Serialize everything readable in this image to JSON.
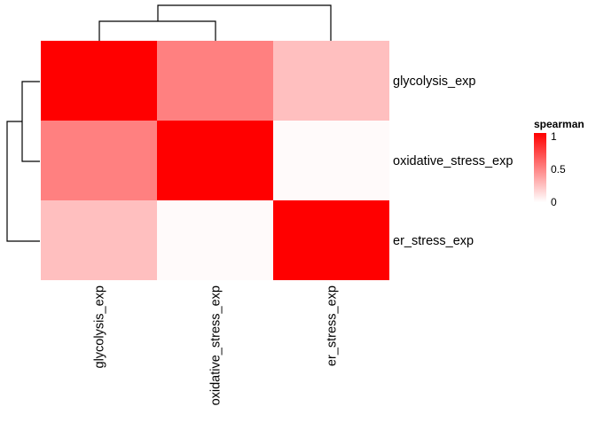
{
  "chart_data": {
    "type": "heatmap",
    "rows": [
      "glycolysis_exp",
      "oxidative_stress_exp",
      "er_stress_exp"
    ],
    "columns": [
      "glycolysis_exp",
      "oxidative_stress_exp",
      "er_stress_exp"
    ],
    "values": [
      [
        1.0,
        0.5,
        0.25
      ],
      [
        0.5,
        1.0,
        0.02
      ],
      [
        0.25,
        0.02,
        1.0
      ]
    ],
    "color_low": "#ffffff",
    "color_high": "#ff0000",
    "legend": {
      "title": "spearman",
      "ticks": [
        "1",
        "0.5",
        "0"
      ],
      "tick_values": [
        1,
        0.5,
        0
      ],
      "range": [
        0,
        1
      ],
      "placement": "right"
    },
    "row_dendrogram": "left",
    "column_dendrogram": "top",
    "grid": false
  }
}
